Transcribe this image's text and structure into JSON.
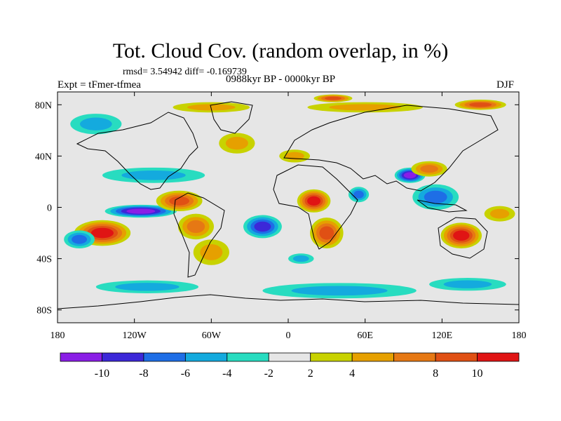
{
  "chart_data": {
    "type": "heatmap",
    "title": "Tot. Cloud Cov. (random overlap, in %)",
    "subtitle": "rmsd= 3.54942 diff= -0.169739",
    "period": "0988kyr BP - 0000kyr BP",
    "experiment": "Expt = tFmer-tfmea",
    "season": "DJF",
    "xlim": [
      -180,
      180
    ],
    "ylim": [
      -90,
      90
    ],
    "x_ticks": [
      {
        "value": -180,
        "label": "180"
      },
      {
        "value": -120,
        "label": "120W"
      },
      {
        "value": -60,
        "label": "60W"
      },
      {
        "value": 0,
        "label": "0"
      },
      {
        "value": 60,
        "label": "60E"
      },
      {
        "value": 120,
        "label": "120E"
      },
      {
        "value": 180,
        "label": "180"
      }
    ],
    "y_ticks": [
      {
        "value": 80,
        "label": "80N"
      },
      {
        "value": 40,
        "label": "40N"
      },
      {
        "value": 0,
        "label": "0"
      },
      {
        "value": -40,
        "label": "40S"
      },
      {
        "value": -80,
        "label": "80S"
      }
    ],
    "colorbar": {
      "levels": [
        -12,
        -10,
        -8,
        -6,
        -4,
        -2,
        2,
        4,
        6,
        8,
        10,
        12
      ],
      "labels": [
        {
          "value": -10,
          "label": "-10"
        },
        {
          "value": -8,
          "label": "-8"
        },
        {
          "value": -6,
          "label": "-6"
        },
        {
          "value": -4,
          "label": "-4"
        },
        {
          "value": -2,
          "label": "-2"
        },
        {
          "value": 2,
          "label": "2"
        },
        {
          "value": 4,
          "label": "4"
        },
        {
          "value": 8,
          "label": "8"
        },
        {
          "value": 10,
          "label": "10"
        }
      ],
      "colors": [
        "#8a1ee6",
        "#3c28d8",
        "#1e6ee6",
        "#14aade",
        "#28dcc0",
        "#e6e6e6",
        "#c8d200",
        "#e6a000",
        "#e67814",
        "#e05014",
        "#e01414"
      ]
    },
    "anomalies": [
      {
        "lon": -145,
        "lat": -20,
        "rx": 22,
        "ry": 10,
        "level": 10
      },
      {
        "lon": -163,
        "lat": -25,
        "rx": 12,
        "ry": 7,
        "level": -6
      },
      {
        "lon": -105,
        "lat": 25,
        "rx": 40,
        "ry": 6,
        "level": -4
      },
      {
        "lon": -115,
        "lat": -3,
        "rx": 28,
        "ry": 5,
        "level": -10
      },
      {
        "lon": -85,
        "lat": 5,
        "rx": 18,
        "ry": 8,
        "level": 8
      },
      {
        "lon": -72,
        "lat": -15,
        "rx": 14,
        "ry": 10,
        "level": 6
      },
      {
        "lon": -60,
        "lat": -35,
        "rx": 14,
        "ry": 10,
        "level": 4
      },
      {
        "lon": -20,
        "lat": -15,
        "rx": 15,
        "ry": 9,
        "level": -8
      },
      {
        "lon": 10,
        "lat": -40,
        "rx": 10,
        "ry": 4,
        "level": -4
      },
      {
        "lon": 20,
        "lat": 5,
        "rx": 13,
        "ry": 9,
        "level": 10
      },
      {
        "lon": 30,
        "lat": -20,
        "rx": 13,
        "ry": 12,
        "level": 8
      },
      {
        "lon": 55,
        "lat": 10,
        "rx": 8,
        "ry": 6,
        "level": -6
      },
      {
        "lon": 95,
        "lat": 25,
        "rx": 12,
        "ry": 6,
        "level": -10
      },
      {
        "lon": 110,
        "lat": 30,
        "rx": 14,
        "ry": 6,
        "level": 6
      },
      {
        "lon": 115,
        "lat": 8,
        "rx": 18,
        "ry": 10,
        "level": -6
      },
      {
        "lon": 135,
        "lat": -22,
        "rx": 16,
        "ry": 10,
        "level": 10
      },
      {
        "lon": 165,
        "lat": -5,
        "rx": 12,
        "ry": 6,
        "level": 4
      },
      {
        "lon": -40,
        "lat": 50,
        "rx": 14,
        "ry": 8,
        "level": 4
      },
      {
        "lon": 5,
        "lat": 40,
        "rx": 12,
        "ry": 5,
        "level": 4
      },
      {
        "lon": -60,
        "lat": 78,
        "rx": 30,
        "ry": 4,
        "level": 4
      },
      {
        "lon": 60,
        "lat": 78,
        "rx": 45,
        "ry": 4,
        "level": 4
      },
      {
        "lon": 150,
        "lat": 80,
        "rx": 20,
        "ry": 4,
        "level": 8
      },
      {
        "lon": 35,
        "lat": 85,
        "rx": 15,
        "ry": 3,
        "level": 8
      },
      {
        "lon": -150,
        "lat": 65,
        "rx": 20,
        "ry": 8,
        "level": -4
      },
      {
        "lon": 40,
        "lat": -65,
        "rx": 60,
        "ry": 6,
        "level": -4
      },
      {
        "lon": -110,
        "lat": -62,
        "rx": 40,
        "ry": 5,
        "level": -4
      },
      {
        "lon": 140,
        "lat": -60,
        "rx": 30,
        "ry": 5,
        "level": -4
      }
    ]
  }
}
